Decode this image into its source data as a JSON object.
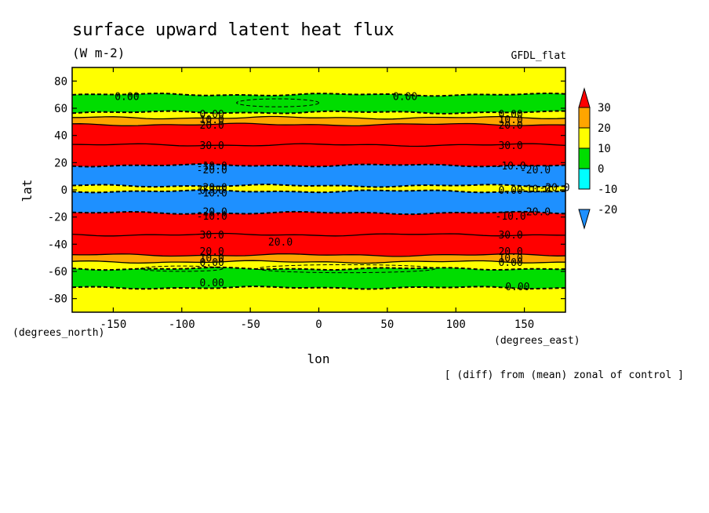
{
  "chart_data": {
    "type": "heatmap",
    "title": "surface upward latent heat flux",
    "units": "(W m-2)",
    "model_label": "GFDL_flat",
    "xlabel": "lon",
    "ylabel": "lat",
    "x_units_label": "(degrees_east)",
    "y_units_label": "(degrees_north)",
    "note": "[ (diff) from (mean) zonal of control ]",
    "xlim": [
      -180,
      180
    ],
    "ylim": [
      -90,
      90
    ],
    "x_ticks": [
      -150,
      -100,
      -50,
      0,
      50,
      100,
      150
    ],
    "y_ticks": [
      80,
      60,
      40,
      20,
      0,
      -20,
      -40,
      -60,
      -80
    ],
    "colorbar": {
      "levels": [
        -20,
        -10,
        0,
        10,
        20,
        30
      ],
      "colors": [
        "#1e90ff",
        "#00ffff",
        "#00dd00",
        "#ffff00",
        "#ffa500",
        "#ff0000"
      ],
      "extend": "both"
    },
    "bands": [
      {
        "lat_from": 90,
        "lat_to": 70,
        "value": 5
      },
      {
        "lat_from": 70,
        "lat_to": 57,
        "value": -5
      },
      {
        "lat_from": 57,
        "lat_to": 53,
        "value": 5
      },
      {
        "lat_from": 53,
        "lat_to": 48,
        "value": 15
      },
      {
        "lat_from": 48,
        "lat_to": 33,
        "value": 25
      },
      {
        "lat_from": 33,
        "lat_to": 18,
        "value": 35
      },
      {
        "lat_from": 18,
        "lat_to": 3,
        "value": -25
      },
      {
        "lat_from": 3,
        "lat_to": -1,
        "value": 5
      },
      {
        "lat_from": -1,
        "lat_to": -17,
        "value": -25
      },
      {
        "lat_from": -17,
        "lat_to": -33,
        "value": 35
      },
      {
        "lat_from": -33,
        "lat_to": -48,
        "value": 25
      },
      {
        "lat_from": -48,
        "lat_to": -53,
        "value": 15
      },
      {
        "lat_from": -53,
        "lat_to": -58,
        "value": 5
      },
      {
        "lat_from": -58,
        "lat_to": -72,
        "value": -5
      },
      {
        "lat_from": -72,
        "lat_to": -90,
        "value": 5
      }
    ],
    "contour_labels": [
      {
        "text": "0.00",
        "lon": -140,
        "lat": 69
      },
      {
        "text": "0.00",
        "lon": 63,
        "lat": 69
      },
      {
        "text": "0.00",
        "lon": -78,
        "lat": 56
      },
      {
        "text": "0.00",
        "lon": 140,
        "lat": 56
      },
      {
        "text": "10.0",
        "lon": -78,
        "lat": 52
      },
      {
        "text": "10.0",
        "lon": 140,
        "lat": 52
      },
      {
        "text": "20.0",
        "lon": -78,
        "lat": 48
      },
      {
        "text": "20.0",
        "lon": 140,
        "lat": 48
      },
      {
        "text": "30.0",
        "lon": -78,
        "lat": 33
      },
      {
        "text": "30.0",
        "lon": 140,
        "lat": 33
      },
      {
        "text": "-10.0",
        "lon": -78,
        "lat": 18
      },
      {
        "text": "-20.0",
        "lon": -78,
        "lat": 15
      },
      {
        "text": "-10.0",
        "lon": 140,
        "lat": 18
      },
      {
        "text": "-20.0",
        "lon": 158,
        "lat": 15
      },
      {
        "text": "-20.0",
        "lon": -78,
        "lat": 2
      },
      {
        "text": "-10.0",
        "lon": -78,
        "lat": -2
      },
      {
        "text": "0.00",
        "lon": -78,
        "lat": 0
      },
      {
        "text": "0.00",
        "lon": 140,
        "lat": 0
      },
      {
        "text": "-10.0",
        "lon": 158,
        "lat": 1
      },
      {
        "text": "-20.0",
        "lon": 172,
        "lat": 2
      },
      {
        "text": "-20.0",
        "lon": -78,
        "lat": -16
      },
      {
        "text": "-10.0",
        "lon": -78,
        "lat": -19
      },
      {
        "text": "-20.0",
        "lon": 158,
        "lat": -16
      },
      {
        "text": "-10.0",
        "lon": 140,
        "lat": -19
      },
      {
        "text": "30.0",
        "lon": -78,
        "lat": -33
      },
      {
        "text": "30.0",
        "lon": 140,
        "lat": -33
      },
      {
        "text": "20.0",
        "lon": -28,
        "lat": -38
      },
      {
        "text": "20.0",
        "lon": -78,
        "lat": -45
      },
      {
        "text": "20.0",
        "lon": 140,
        "lat": -45
      },
      {
        "text": "10.0",
        "lon": -78,
        "lat": -50
      },
      {
        "text": "10.0",
        "lon": 140,
        "lat": -50
      },
      {
        "text": "0.00",
        "lon": -78,
        "lat": -53
      },
      {
        "text": "0.00",
        "lon": 140,
        "lat": -53
      },
      {
        "text": "0.00",
        "lon": -78,
        "lat": -68
      },
      {
        "text": "0.00",
        "lon": 145,
        "lat": -71
      }
    ]
  }
}
